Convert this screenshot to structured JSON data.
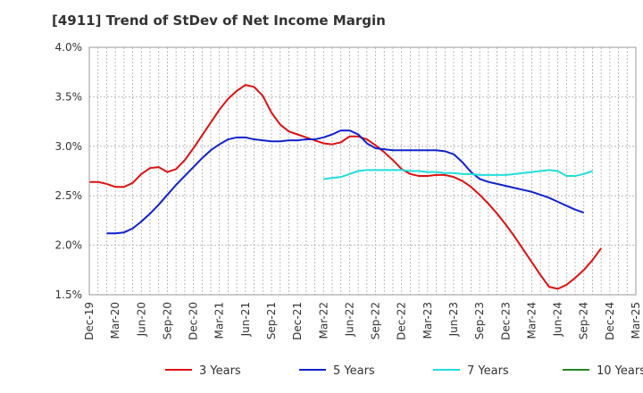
{
  "chart_data": {
    "type": "line",
    "title": "[4911]  Trend of StDev of Net Income Margin",
    "xlabel": "",
    "ylabel": "",
    "ylim": [
      1.5,
      4.0
    ],
    "yticks": [
      "4.0%",
      "3.5%",
      "3.0%",
      "2.5%",
      "2.0%",
      "1.5%"
    ],
    "ytick_values": [
      4.0,
      3.5,
      3.0,
      2.5,
      2.0,
      1.5
    ],
    "xticks": [
      "Dec-19",
      "Mar-20",
      "Jun-20",
      "Sep-20",
      "Dec-20",
      "Mar-21",
      "Jun-21",
      "Sep-21",
      "Dec-21",
      "Mar-22",
      "Jun-22",
      "Sep-22",
      "Dec-22",
      "Mar-23",
      "Jun-23",
      "Sep-23",
      "Dec-23",
      "Mar-24",
      "Jun-24",
      "Sep-24",
      "Dec-24",
      "Mar-25"
    ],
    "grid": true,
    "legend_position": "bottom",
    "series": [
      {
        "name": "3 Years",
        "color": "#dd1111",
        "points": [
          [
            0,
            2.64
          ],
          [
            1,
            2.64
          ],
          [
            2,
            2.62
          ],
          [
            3,
            2.59
          ],
          [
            4,
            2.59
          ],
          [
            5,
            2.63
          ],
          [
            6,
            2.72
          ],
          [
            7,
            2.78
          ],
          [
            8,
            2.79
          ],
          [
            9,
            2.74
          ],
          [
            10,
            2.77
          ],
          [
            11,
            2.86
          ],
          [
            12,
            2.98
          ],
          [
            13,
            3.11
          ],
          [
            14,
            3.24
          ],
          [
            15,
            3.37
          ],
          [
            16,
            3.48
          ],
          [
            17,
            3.56
          ],
          [
            18,
            3.62
          ],
          [
            19,
            3.6
          ],
          [
            20,
            3.51
          ],
          [
            21,
            3.34
          ],
          [
            22,
            3.22
          ],
          [
            23,
            3.15
          ],
          [
            24,
            3.12
          ],
          [
            25,
            3.09
          ],
          [
            26,
            3.06
          ],
          [
            27,
            3.03
          ],
          [
            28,
            3.02
          ],
          [
            29,
            3.04
          ],
          [
            30,
            3.1
          ],
          [
            31,
            3.1
          ],
          [
            32,
            3.07
          ],
          [
            33,
            3.01
          ],
          [
            34,
            2.94
          ],
          [
            35,
            2.86
          ],
          [
            36,
            2.77
          ],
          [
            37,
            2.72
          ],
          [
            38,
            2.7
          ],
          [
            39,
            2.7
          ],
          [
            40,
            2.71
          ],
          [
            41,
            2.71
          ],
          [
            42,
            2.69
          ],
          [
            43,
            2.65
          ],
          [
            44,
            2.59
          ],
          [
            45,
            2.51
          ],
          [
            46,
            2.42
          ],
          [
            47,
            2.32
          ],
          [
            48,
            2.21
          ],
          [
            49,
            2.09
          ],
          [
            50,
            1.96
          ],
          [
            51,
            1.83
          ],
          [
            52,
            1.7
          ],
          [
            53,
            1.58
          ],
          [
            54,
            1.56
          ],
          [
            55,
            1.6
          ],
          [
            56,
            1.67
          ],
          [
            57,
            1.75
          ],
          [
            58,
            1.85
          ],
          [
            59,
            1.97
          ]
        ]
      },
      {
        "name": "5 Years",
        "color": "#1122cc",
        "points": [
          [
            2,
            2.12
          ],
          [
            3,
            2.12
          ],
          [
            4,
            2.13
          ],
          [
            5,
            2.17
          ],
          [
            6,
            2.24
          ],
          [
            7,
            2.32
          ],
          [
            8,
            2.41
          ],
          [
            9,
            2.51
          ],
          [
            10,
            2.61
          ],
          [
            11,
            2.7
          ],
          [
            12,
            2.79
          ],
          [
            13,
            2.88
          ],
          [
            14,
            2.96
          ],
          [
            15,
            3.02
          ],
          [
            16,
            3.07
          ],
          [
            17,
            3.09
          ],
          [
            18,
            3.09
          ],
          [
            19,
            3.07
          ],
          [
            20,
            3.06
          ],
          [
            21,
            3.05
          ],
          [
            22,
            3.05
          ],
          [
            23,
            3.06
          ],
          [
            24,
            3.06
          ],
          [
            25,
            3.07
          ],
          [
            26,
            3.07
          ],
          [
            27,
            3.09
          ],
          [
            28,
            3.12
          ],
          [
            29,
            3.16
          ],
          [
            30,
            3.16
          ],
          [
            31,
            3.12
          ],
          [
            32,
            3.03
          ],
          [
            33,
            2.98
          ],
          [
            34,
            2.97
          ],
          [
            35,
            2.96
          ],
          [
            36,
            2.96
          ],
          [
            37,
            2.96
          ],
          [
            38,
            2.96
          ],
          [
            39,
            2.96
          ],
          [
            40,
            2.96
          ],
          [
            41,
            2.95
          ],
          [
            42,
            2.92
          ],
          [
            43,
            2.84
          ],
          [
            44,
            2.74
          ],
          [
            45,
            2.67
          ],
          [
            46,
            2.64
          ],
          [
            47,
            2.62
          ],
          [
            48,
            2.6
          ],
          [
            49,
            2.58
          ],
          [
            50,
            2.56
          ],
          [
            51,
            2.54
          ],
          [
            52,
            2.51
          ],
          [
            53,
            2.48
          ],
          [
            54,
            2.44
          ],
          [
            55,
            2.4
          ],
          [
            56,
            2.36
          ],
          [
            57,
            2.33
          ]
        ]
      },
      {
        "name": "7 Years",
        "color": "#22dddd",
        "points": [
          [
            27,
            2.67
          ],
          [
            28,
            2.68
          ],
          [
            29,
            2.69
          ],
          [
            30,
            2.72
          ],
          [
            31,
            2.75
          ],
          [
            32,
            2.76
          ],
          [
            33,
            2.76
          ],
          [
            34,
            2.76
          ],
          [
            35,
            2.76
          ],
          [
            36,
            2.76
          ],
          [
            37,
            2.75
          ],
          [
            38,
            2.75
          ],
          [
            39,
            2.74
          ],
          [
            40,
            2.74
          ],
          [
            41,
            2.73
          ],
          [
            42,
            2.73
          ],
          [
            43,
            2.72
          ],
          [
            44,
            2.72
          ],
          [
            45,
            2.71
          ],
          [
            46,
            2.71
          ],
          [
            47,
            2.71
          ],
          [
            48,
            2.71
          ],
          [
            49,
            2.72
          ],
          [
            50,
            2.73
          ],
          [
            51,
            2.74
          ],
          [
            52,
            2.75
          ],
          [
            53,
            2.76
          ],
          [
            54,
            2.75
          ],
          [
            55,
            2.7
          ],
          [
            56,
            2.7
          ],
          [
            57,
            2.72
          ],
          [
            58,
            2.75
          ]
        ]
      },
      {
        "name": "10 Years",
        "color": "#228822",
        "points": []
      }
    ]
  }
}
